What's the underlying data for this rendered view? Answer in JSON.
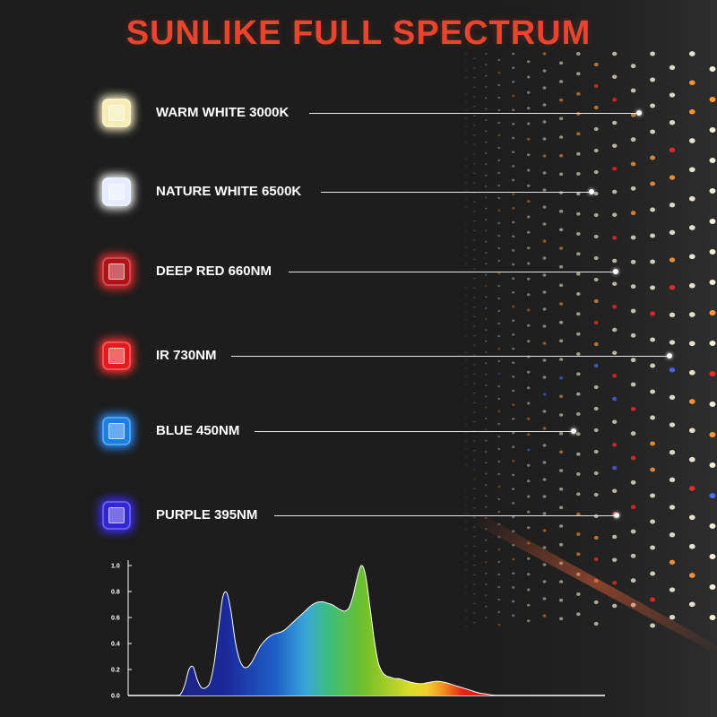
{
  "title": "SUNLIKE FULL SPECTRUM",
  "legend": [
    {
      "label": "WARM WHITE 3000K",
      "chip": "warm-white",
      "color": "#f6ecb4",
      "glow": "#fff6c8"
    },
    {
      "label": "NATURE WHITE 6500K",
      "chip": "nature-white",
      "color": "#e6ecff",
      "glow": "#ffffff"
    },
    {
      "label": "DEEP RED 660NM",
      "chip": "deep-red",
      "color": "#b01217",
      "glow": "#ff2a2a"
    },
    {
      "label": "IR 730NM",
      "chip": "ir",
      "color": "#e8191c",
      "glow": "#ff3030"
    },
    {
      "label": "BLUE 450NM",
      "chip": "blue",
      "color": "#1a7fe0",
      "glow": "#2a8cff"
    },
    {
      "label": "PURPLE 395NM",
      "chip": "purple",
      "color": "#3226d4",
      "glow": "#3a2bff"
    }
  ],
  "chart_data": {
    "type": "area",
    "y_ticks": [
      "1.0",
      "0.8",
      "0.6",
      "0.4",
      "0.2",
      "0.0"
    ],
    "ylim": [
      0,
      1
    ],
    "x": [
      0,
      20,
      25,
      30,
      35,
      40,
      45,
      50,
      55,
      60,
      65,
      70,
      75,
      80,
      85,
      90,
      95,
      100,
      105,
      110,
      115,
      120,
      125,
      130,
      135,
      140,
      145,
      150,
      155,
      160,
      165,
      170,
      175,
      180,
      185,
      190,
      195,
      200,
      205,
      210,
      215,
      220,
      225,
      230,
      235,
      240,
      245,
      250,
      255,
      260,
      265,
      270,
      275,
      280,
      285,
      290,
      295,
      300,
      310,
      320,
      330,
      340,
      350,
      360,
      370,
      380,
      390,
      400,
      410,
      420,
      430,
      440,
      450,
      460,
      470,
      480,
      490,
      500,
      530
    ],
    "values": [
      0,
      0,
      0.01,
      0.08,
      0.2,
      0.22,
      0.12,
      0.06,
      0.06,
      0.1,
      0.25,
      0.5,
      0.75,
      0.79,
      0.65,
      0.42,
      0.28,
      0.22,
      0.22,
      0.26,
      0.32,
      0.38,
      0.42,
      0.45,
      0.47,
      0.48,
      0.49,
      0.51,
      0.54,
      0.57,
      0.6,
      0.63,
      0.66,
      0.69,
      0.71,
      0.72,
      0.72,
      0.71,
      0.7,
      0.68,
      0.66,
      0.65,
      0.67,
      0.76,
      0.9,
      1.0,
      0.93,
      0.7,
      0.45,
      0.26,
      0.18,
      0.15,
      0.14,
      0.13,
      0.13,
      0.12,
      0.11,
      0.1,
      0.09,
      0.1,
      0.11,
      0.1,
      0.08,
      0.06,
      0.04,
      0.02,
      0.01,
      0,
      0,
      0,
      0,
      0,
      0,
      0,
      0,
      0,
      0,
      0,
      0
    ]
  }
}
